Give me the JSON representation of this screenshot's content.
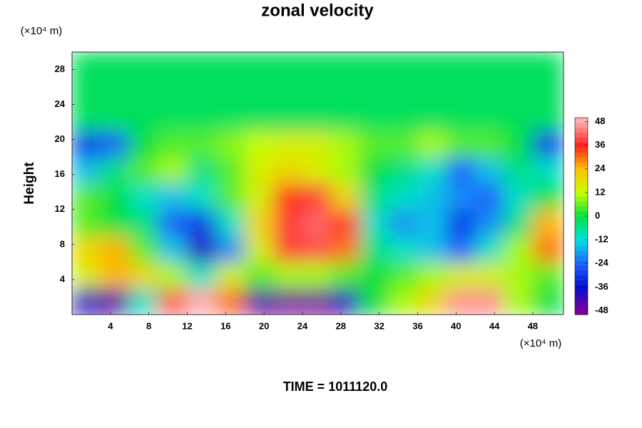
{
  "chart_data": {
    "type": "contour",
    "title": "zonal velocity",
    "y_unit_label": "(×10⁴ m)",
    "x_unit_label": "(×10⁴ m)",
    "ylabel": "Height",
    "footer": "TIME = 1011120.0",
    "xlim": [
      0,
      51.2
    ],
    "ylim": [
      0,
      30
    ],
    "xticks": [
      4,
      8,
      12,
      16,
      20,
      24,
      28,
      32,
      36,
      40,
      44,
      48
    ],
    "yticks": [
      4,
      8,
      12,
      16,
      20,
      24,
      28
    ],
    "x": [
      1.5,
      4.5,
      7.5,
      10.5,
      13.5,
      16.5,
      19.5,
      22.5,
      25.5,
      28.5,
      31.5,
      34.5,
      37.5,
      40.5,
      43.5,
      46.5,
      49.5
    ],
    "y": [
      1.5,
      4.5,
      7.5,
      10.5,
      13.5,
      16.5,
      19.5,
      22.5,
      25.5,
      28.5
    ],
    "z": [
      [
        -40,
        -45,
        -10,
        40,
        48,
        30,
        -45,
        -48,
        -48,
        -40,
        0,
        10,
        20,
        45,
        45,
        10,
        0
      ],
      [
        15,
        25,
        20,
        10,
        -10,
        15,
        5,
        10,
        10,
        5,
        0,
        5,
        10,
        15,
        15,
        10,
        5
      ],
      [
        20,
        25,
        5,
        -15,
        -40,
        -20,
        15,
        38,
        40,
        30,
        -5,
        -10,
        -15,
        -25,
        -10,
        10,
        30
      ],
      [
        5,
        0,
        -5,
        -25,
        -30,
        -10,
        20,
        38,
        42,
        35,
        -10,
        -20,
        -15,
        -30,
        -20,
        -5,
        25
      ],
      [
        5,
        0,
        -10,
        -15,
        -10,
        5,
        15,
        35,
        38,
        20,
        -5,
        -10,
        -15,
        -20,
        -25,
        -10,
        0
      ],
      [
        -15,
        -5,
        5,
        10,
        -5,
        5,
        15,
        20,
        15,
        10,
        0,
        -5,
        -10,
        -25,
        -15,
        -5,
        -10
      ],
      [
        -30,
        -25,
        0,
        5,
        5,
        8,
        12,
        15,
        15,
        10,
        5,
        5,
        10,
        5,
        5,
        0,
        -30
      ],
      [
        -2,
        -2,
        -2,
        -2,
        -2,
        -2,
        -2,
        -2,
        -2,
        -2,
        -2,
        -2,
        -2,
        -2,
        -2,
        -2,
        -2
      ],
      [
        -2,
        -2,
        -2,
        -2,
        -2,
        -2,
        -2,
        -2,
        -2,
        -2,
        -2,
        -2,
        -2,
        -2,
        -2,
        -2,
        -2
      ],
      [
        -2,
        -2,
        -2,
        -2,
        -2,
        -2,
        -2,
        -2,
        -2,
        -2,
        -2,
        -2,
        -2,
        -2,
        -2,
        -2,
        -2
      ]
    ],
    "clim": [
      -50,
      50
    ],
    "colorbar_ticks": [
      -48,
      -36,
      -24,
      -12,
      0,
      12,
      24,
      36,
      48
    ],
    "colorbar_colors": [
      "#7a0099",
      "#0010cc",
      "#1e64ff",
      "#00e0e0",
      "#00e040",
      "#c8ff00",
      "#ffc000",
      "#ff2020",
      "#ffb0b0"
    ]
  }
}
